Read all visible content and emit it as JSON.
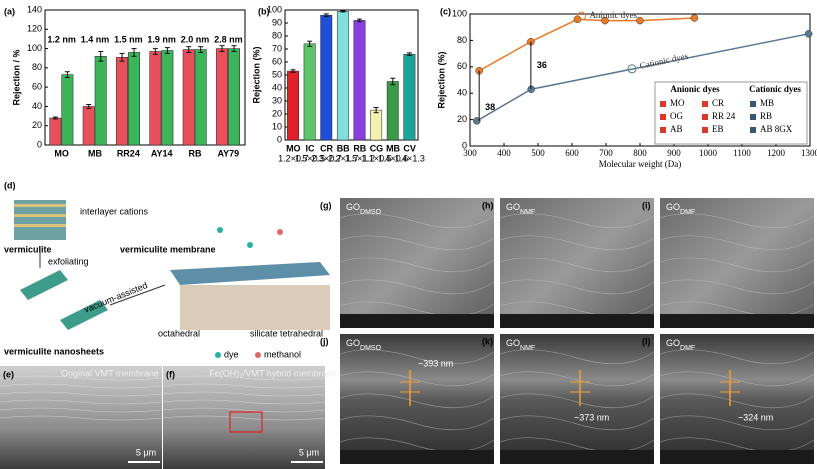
{
  "chart_data": [
    {
      "type": "bar",
      "panel": "(a)",
      "ylabel": "Rejection / %",
      "categories": [
        "MO",
        "MB",
        "RR24",
        "AY14",
        "RB",
        "AY79"
      ],
      "molecule_sizes": [
        "1.2 nm",
        "1.4 nm",
        "1.5 nm",
        "1.9 nm",
        "2.0 nm",
        "2.8 nm"
      ],
      "series": [
        {
          "color": "#e8505b",
          "values": [
            28,
            40,
            91,
            97,
            99,
            100
          ],
          "errors": [
            1,
            2,
            4,
            3,
            3,
            3
          ]
        },
        {
          "color": "#3cb45a",
          "values": [
            73,
            92,
            96,
            98,
            99,
            100
          ],
          "errors": [
            3,
            5,
            4,
            3,
            3,
            3
          ]
        }
      ],
      "ylim": [
        0,
        140
      ],
      "yticks": [
        0,
        20,
        40,
        60,
        80,
        100,
        120,
        140
      ]
    },
    {
      "type": "bar",
      "panel": "(b)",
      "ylabel": "Rejection (%)",
      "categories": [
        "MO",
        "IC",
        "CR",
        "BB",
        "RB",
        "CG",
        "MB",
        "CV"
      ],
      "category_sizes": [
        "1.2×0.7",
        "1.5×0.5",
        "2.3×0.7",
        "2.2×1.7",
        "1.5×1.2",
        "1.1×0.5",
        "1.4×0.6",
        "1.4×1.3"
      ],
      "series": [
        {
          "colors": [
            "#e0202a",
            "#5cc46a",
            "#1f4fd8",
            "#7fe0dc",
            "#8a3ee0",
            "#f4f2b0",
            "#3a9a48",
            "#1aa59a"
          ],
          "values": [
            53,
            74,
            96,
            99,
            92,
            23,
            45,
            66
          ],
          "errors": [
            1,
            2,
            1,
            0.5,
            1,
            2,
            2.5,
            1
          ]
        }
      ],
      "ylim": [
        0,
        100
      ],
      "yticks": [
        0,
        10,
        20,
        30,
        40,
        50,
        60,
        70,
        80,
        90,
        100
      ]
    },
    {
      "type": "line",
      "panel": "(c)",
      "ylabel": "Rejection (%)",
      "xlabel": "Molecular weight (Da)",
      "series": [
        {
          "name": "Anionic dyes",
          "color": "#e87a28",
          "x": [
            327,
            479,
            616,
            697,
            800,
            960
          ],
          "values": [
            57,
            79,
            96,
            95,
            95,
            97
          ]
        },
        {
          "name": "Cationic dyes",
          "color": "#5a7890",
          "x": [
            320,
            480,
            1296
          ],
          "values": [
            19,
            43,
            85
          ]
        }
      ],
      "annotations": [
        "38",
        "36"
      ],
      "legend_table": {
        "anionic": {
          "title": "Anionic dyes",
          "items": [
            "MO",
            "OG",
            "AB",
            "CR",
            "RR 24",
            "EB"
          ]
        },
        "cationic": {
          "title": "Cationic dyes",
          "items": [
            "MB",
            "RB",
            "AB 8GX"
          ]
        }
      },
      "xlim": [
        300,
        1300
      ],
      "xticks": [
        300,
        400,
        500,
        600,
        700,
        800,
        900,
        1000,
        1100,
        1200,
        1300
      ],
      "ylim": [
        0,
        100
      ],
      "yticks": [
        0,
        20,
        40,
        60,
        80,
        100
      ]
    }
  ],
  "panel_d": {
    "label": "(d)",
    "texts": [
      "interlayer cations",
      "vermiculite",
      "vermiculite membrane",
      "exfoliating",
      "vacuum-assisted",
      "vermiculite nanosheets",
      "octahedral",
      "silicate tetrahedral",
      "dye",
      "methanol"
    ]
  },
  "panel_e": {
    "label": "(e)",
    "caption": "Original VMT membrane",
    "scale": "5 μm"
  },
  "panel_f": {
    "label": "(f)",
    "caption": "Fe(OH)₃/VMT hybrid membrane",
    "scale": "5 μm"
  },
  "sem": [
    {
      "label": "(g)",
      "title": "GO",
      "sub": "DMSO"
    },
    {
      "label": "(h)",
      "title": "GO",
      "sub": "NMF"
    },
    {
      "label": "(i)",
      "title": "GO",
      "sub": "DMF"
    },
    {
      "label": "(j)",
      "title": "GO",
      "sub": "DMSO",
      "thickness": "~393 nm"
    },
    {
      "label": "(k)",
      "title": "GO",
      "sub": "NMF",
      "thickness": "~373 nm"
    },
    {
      "label": "(l)",
      "title": "GO",
      "sub": "DMF",
      "thickness": "~324 nm"
    }
  ]
}
